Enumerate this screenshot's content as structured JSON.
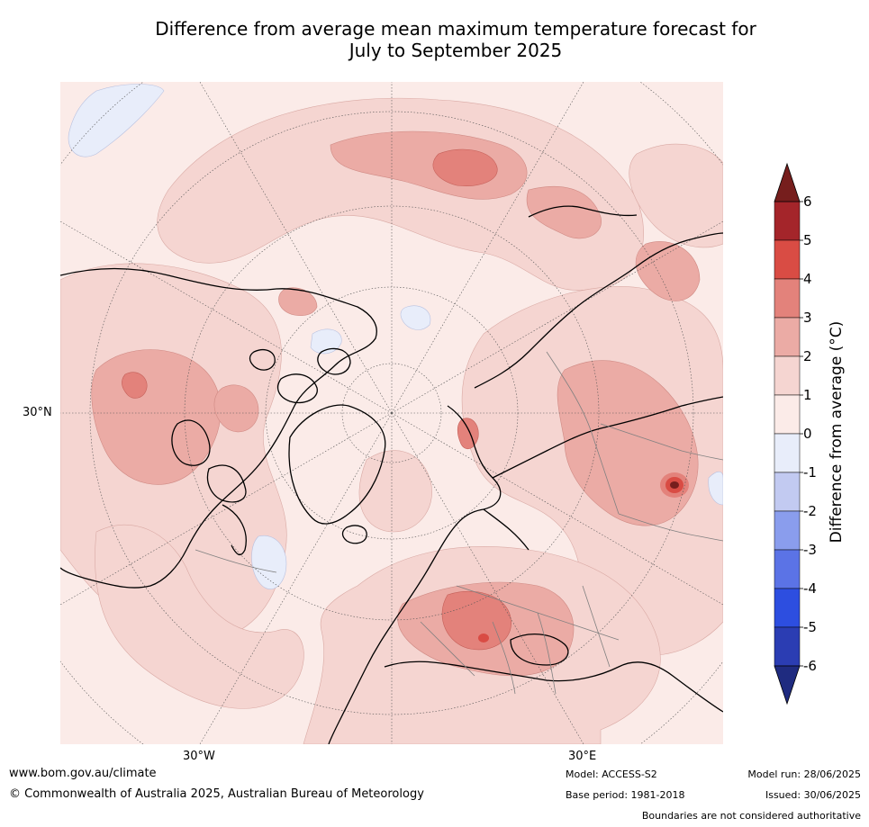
{
  "title_line1": "Difference from average mean maximum temperature forecast for",
  "title_line2": "July to September 2025",
  "map": {
    "projection": "north-polar-stereographic",
    "lat_label": "30°N",
    "lon_labels": [
      "30°W",
      "30°E"
    ],
    "ocean_color": "#fbebe8",
    "shade_colors": {
      "0_1": "#fbebe8",
      "1_2": "#f5d5d1",
      "2_3": "#ebaba5",
      "3_4": "#e3827b",
      "neg": "#e8edfa"
    }
  },
  "colorbar": {
    "label": "Difference from average (°C)",
    "ticks": [
      "6",
      "5",
      "4",
      "3",
      "2",
      "1",
      "0",
      "-1",
      "-2",
      "-3",
      "-4",
      "-5",
      "-6"
    ],
    "colors": [
      "#a4252a",
      "#d94c44",
      "#e3827b",
      "#ebaba5",
      "#f5d5d1",
      "#fbebe8",
      "#e8edfa",
      "#c2caf1",
      "#8a9ded",
      "#5b73e6",
      "#2d4ee0",
      "#2b3db3"
    ],
    "over_color": "#761e1d",
    "under_color": "#1f2b80"
  },
  "footer": {
    "url": "www.bom.gov.au/climate",
    "copyright": "© Commonwealth of Australia 2025, Australian Bureau of Meteorology",
    "model": "Model: ACCESS-S2",
    "base_period": "Base period: 1981-2018",
    "model_run": "Model run: 28/06/2025",
    "issued": "Issued: 30/06/2025",
    "disclaimer": "Boundaries are not considered authoritative"
  }
}
